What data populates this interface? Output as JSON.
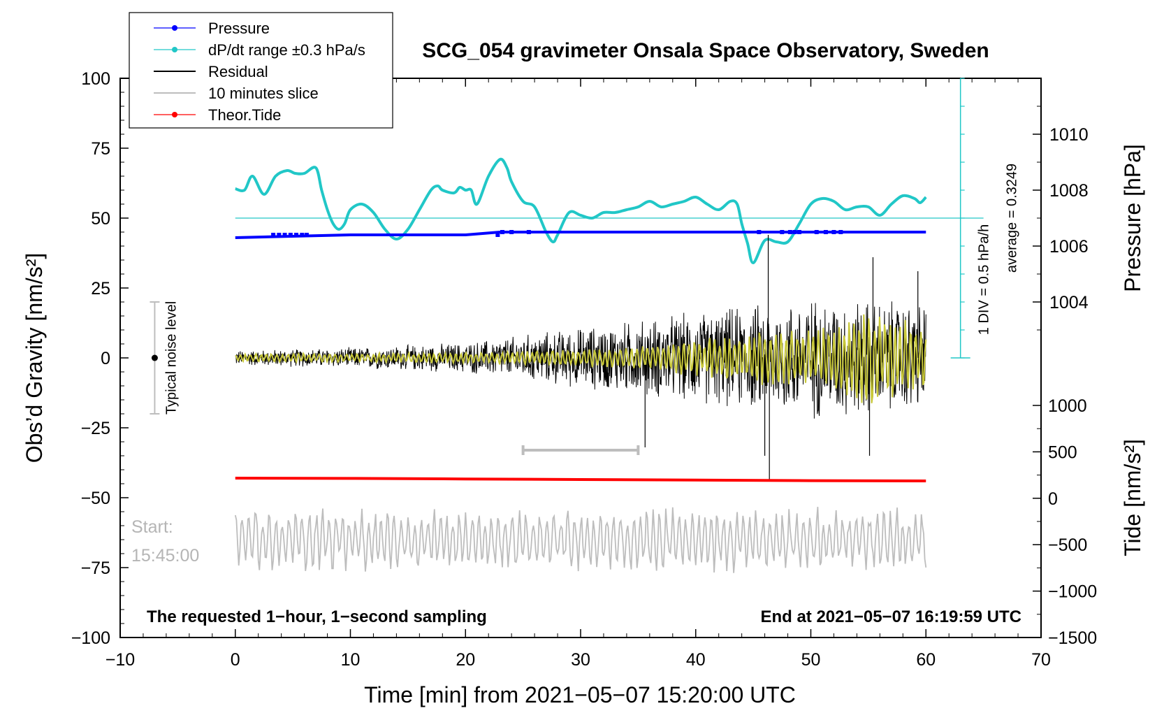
{
  "chart_data": {
    "type": "line",
    "title": "SCG_054 gravimeter Onsala Space Observatory, Sweden",
    "xlabel": "Time [min] from 2021−05−07 15:20:00 UTC",
    "ylabel_left": "Obs’d Gravity [nm/s²]",
    "ylabel_pressure": "Pressure [hPa]",
    "ylabel_tide": "Tide [nm/s²]",
    "xlim": [
      -10,
      70
    ],
    "ylim_left": [
      -100,
      100
    ],
    "x_ticks": [
      "−10",
      "0",
      "10",
      "20",
      "30",
      "40",
      "50",
      "60",
      "70"
    ],
    "x_tick_values": [
      -10,
      0,
      10,
      20,
      30,
      40,
      50,
      60,
      70
    ],
    "y_ticks_left": [
      "100",
      "75",
      "50",
      "25",
      "0",
      "−25",
      "−50",
      "−75",
      "−100"
    ],
    "y_tick_values_left": [
      100,
      75,
      50,
      25,
      0,
      -25,
      -50,
      -75,
      -100
    ],
    "pressure_ticks": [
      "1010",
      "1008",
      "1006",
      "1004"
    ],
    "pressure_tick_values": [
      1010,
      1008,
      1006,
      1004
    ],
    "pressure_axis_map": {
      "hPa": [
        1004,
        1010
      ],
      "gravity_units": [
        20,
        80
      ]
    },
    "tide_ticks": [
      "1000",
      "500",
      "0",
      "−500",
      "−1000",
      "−1500"
    ],
    "tide_tick_values": [
      1000,
      500,
      0,
      -500,
      -1000,
      -1500
    ],
    "tide_axis_map": {
      "nm_s2": [
        -1500,
        1000
      ],
      "gravity_units": [
        -100,
        -17
      ]
    },
    "legend": [
      {
        "label": "Pressure",
        "color": "#0000ff",
        "style": "line-dot"
      },
      {
        "label": "dP/dt range ±0.3 hPa/s",
        "color": "#21c7c7",
        "style": "line-dot"
      },
      {
        "label": "Residual",
        "color": "#000000",
        "style": "line"
      },
      {
        "label": "10 minutes slice",
        "color": "#bdbdbd",
        "style": "line"
      },
      {
        "label": "Theor.Tide",
        "color": "#ff0000",
        "style": "line-dot"
      }
    ],
    "series": [
      {
        "name": "Pressure",
        "color": "#0000ff",
        "x": [
          0,
          10,
          20,
          23,
          30,
          40,
          50,
          60
        ],
        "values": [
          1006.3,
          1006.4,
          1006.4,
          1006.5,
          1006.5,
          1006.5,
          1006.5,
          1006.5
        ]
      },
      {
        "name": "dP/dt range ±0.3 hPa/s",
        "color": "#21c7c7",
        "baseline": 50,
        "x": [
          0,
          0.8,
          1.5,
          2.5,
          3.5,
          4.5,
          5.2,
          6,
          7,
          7.5,
          8,
          8.5,
          9,
          9.5,
          10,
          11,
          12,
          13,
          14,
          15,
          16,
          17,
          17.6,
          18,
          19,
          19.5,
          20,
          20.5,
          21,
          22,
          23,
          23.6,
          24,
          25,
          26,
          27,
          27.6,
          28,
          29,
          30,
          31,
          32,
          33,
          34,
          35,
          36,
          37,
          38,
          39,
          40,
          41,
          42,
          43,
          43.6,
          44,
          44.5,
          45,
          46,
          47,
          48,
          49,
          50,
          51,
          52,
          53,
          54,
          55,
          56,
          57,
          58,
          59,
          59.5,
          60
        ],
        "values": [
          60.5,
          60,
          65,
          58.5,
          65,
          67,
          66,
          66,
          68,
          60,
          53,
          48,
          46,
          48,
          53,
          55,
          52,
          46,
          42.5,
          46,
          53,
          60,
          61.5,
          60,
          59,
          61,
          60,
          60,
          55,
          65,
          71,
          68,
          63,
          56,
          54,
          45,
          41.5,
          44,
          52,
          51,
          50,
          52,
          52,
          53,
          54,
          56,
          54,
          55,
          56,
          57.5,
          55,
          53,
          56,
          55,
          48,
          41,
          34,
          42,
          41.5,
          41.5,
          48,
          55,
          57,
          56,
          53,
          54,
          54,
          51,
          55,
          58,
          57,
          55.5,
          57.5
        ]
      },
      {
        "name": "Residual",
        "color": "#000000",
        "x_range": [
          0,
          60
        ],
        "amplitude_envelope": [
          [
            0,
            3
          ],
          [
            10,
            4
          ],
          [
            20,
            6
          ],
          [
            30,
            12
          ],
          [
            40,
            18
          ],
          [
            50,
            24
          ],
          [
            60,
            22
          ]
        ],
        "spikes": [
          {
            "x": 35.6,
            "y": -32
          },
          {
            "x": 46.0,
            "y": -35
          },
          {
            "x": 46.3,
            "y": 44
          },
          {
            "x": 46.4,
            "y": -44
          },
          {
            "x": 55.1,
            "y": -35
          },
          {
            "x": 55.4,
            "y": 36
          },
          {
            "x": 59.3,
            "y": 31
          }
        ]
      },
      {
        "name": "Residual (smoothed)",
        "color": "#c8c83a",
        "x_range": [
          0,
          60
        ],
        "amplitude_envelope": [
          [
            0,
            1.5
          ],
          [
            20,
            2
          ],
          [
            35,
            4
          ],
          [
            45,
            10
          ],
          [
            50,
            10
          ],
          [
            55,
            18
          ],
          [
            60,
            12
          ]
        ]
      },
      {
        "name": "Theor.Tide",
        "color": "#ff0000",
        "x": [
          0,
          10,
          20,
          30,
          40,
          50,
          60
        ],
        "values": [
          -43,
          -43.1,
          -43.3,
          -43.5,
          -43.7,
          -43.9,
          -44
        ]
      },
      {
        "name": "10 minutes slice",
        "color": "#bdbdbd",
        "x_range": [
          0,
          60
        ],
        "center": -65,
        "amplitude": 12
      }
    ],
    "slice_marker": {
      "x_start": 25,
      "x_end": 35,
      "y": -33
    },
    "noise_bar": {
      "x": -7,
      "y_low": -20,
      "y_high": 20,
      "y_dot": 0,
      "label": "Typical noise level"
    },
    "pressure_scale_bar": {
      "x": 63,
      "y_low": 0,
      "y_high": 100,
      "label_div": "1 DIV = 0.5 hPa/h",
      "label_avg": "average = 0.3249"
    },
    "annotations": {
      "start_label": "Start:",
      "start_time": "15:45:00",
      "bottom_left": "The requested 1−hour, 1−second sampling",
      "bottom_right": "End at 2021−05−07 16:19:59 UTC"
    }
  }
}
